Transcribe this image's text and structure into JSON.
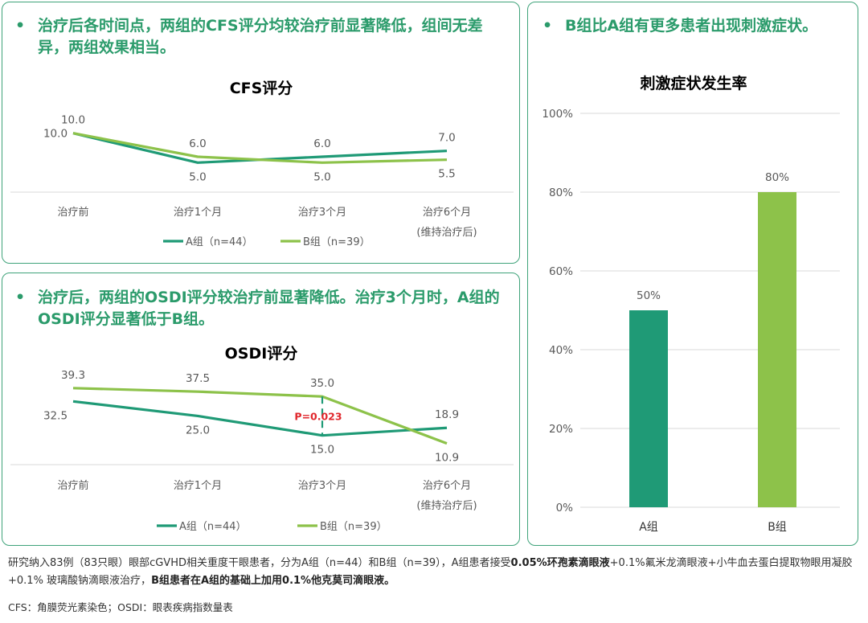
{
  "cfs_panel": {
    "bullet": "•",
    "headline": "治疗后各时间点，两组的CFS评分均较治疗前显著降低，组间无差异，两组效果相当。"
  },
  "osdi_panel": {
    "bullet": "•",
    "headline": "治疗后，两组的OSDI评分较治疗前显著降低。治疗3个月时，A组的OSDI评分显著低于B组。"
  },
  "irr_panel": {
    "bullet": "•",
    "headline": "B组比A组有更多患者出现刺激症状。"
  },
  "footer": {
    "p1": "研究纳入83例（83只眼）眼部cGVHD相关重度干眼患者，分为A组（n=44）和B组（n=39），A组患者接受",
    "b1": "0.05%环孢素滴眼液",
    "p2": "+0.1%氟米龙滴眼液+小牛血去蛋白提取物眼用凝胶+0.1% 玻璃酸钠滴眼液治疗，",
    "b2": "B组患者在A组的基础上加用0.1%他克莫司滴眼液。",
    "abbr": "CFS：角膜荧光素染色；OSDI：眼表疾病指数量表"
  },
  "colors": {
    "group_a": "#1f9a76",
    "group_b": "#8dc24a",
    "axis": "#d9d9d9",
    "text": "#595959",
    "pvalue": "#e0262b"
  },
  "chart_data": [
    {
      "type": "line",
      "title": "CFS评分",
      "categories": [
        "治疗前",
        "治疗1个月",
        "治疗3个月",
        "治疗6个月\n(维持治疗后)"
      ],
      "category_labels": [
        [
          "治疗前"
        ],
        [
          "治疗1个月"
        ],
        [
          "治疗3个月"
        ],
        [
          "治疗6个月",
          "(维持治疗后)"
        ]
      ],
      "series": [
        {
          "name": "A组（n=44）",
          "values": [
            10.0,
            5.0,
            6.0,
            7.0
          ],
          "labels": [
            "10.0",
            "5.0",
            "6.0",
            "7.0"
          ]
        },
        {
          "name": "B组（n=39）",
          "values": [
            10.0,
            6.0,
            5.0,
            5.5
          ],
          "labels": [
            "10.0",
            "6.0",
            "5.0",
            "5.5"
          ]
        }
      ],
      "legend_position": "bottom",
      "ylim": [
        0,
        12
      ]
    },
    {
      "type": "line",
      "title": "OSDI评分",
      "categories": [
        "治疗前",
        "治疗1个月",
        "治疗3个月",
        "治疗6个月\n(维持治疗后)"
      ],
      "category_labels": [
        [
          "治疗前"
        ],
        [
          "治疗1个月"
        ],
        [
          "治疗3个月"
        ],
        [
          "治疗6个月",
          "(维持治疗后)"
        ]
      ],
      "series": [
        {
          "name": "A组（n=44）",
          "values": [
            32.5,
            25.0,
            15.0,
            18.9
          ],
          "labels": [
            "32.5",
            "25.0",
            "15.0",
            "18.9"
          ]
        },
        {
          "name": "B组（n=39）",
          "values": [
            39.3,
            37.5,
            35.0,
            10.9
          ],
          "labels": [
            "39.3",
            "37.5",
            "35.0",
            "10.9"
          ]
        }
      ],
      "annotations": [
        {
          "category_index": 2,
          "text": "P=0.023"
        }
      ],
      "legend_position": "bottom",
      "ylim": [
        0,
        45
      ]
    },
    {
      "type": "bar",
      "title": "刺激症状发生率",
      "categories": [
        "A组",
        "B组"
      ],
      "values": [
        50,
        80
      ],
      "labels": [
        "50%",
        "80%"
      ],
      "yticks": [
        "0%",
        "20%",
        "40%",
        "60%",
        "80%",
        "100%"
      ],
      "ylim": [
        0,
        100
      ],
      "grid": true
    }
  ]
}
